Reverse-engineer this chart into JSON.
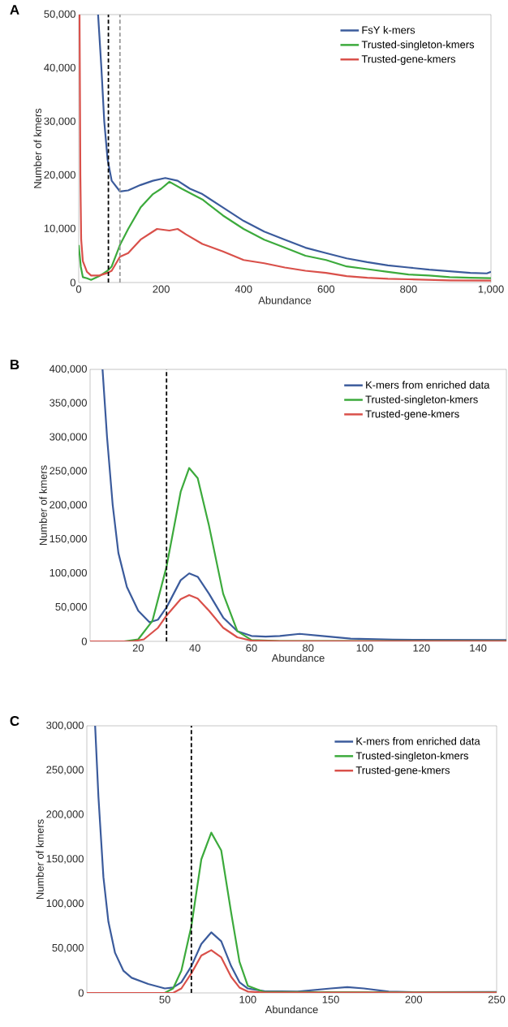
{
  "chart_data": [
    {
      "type": "line",
      "title": "A",
      "xlabel": "Abundance",
      "ylabel": "Number of kmers",
      "xlim": [
        0,
        1000
      ],
      "ylim": [
        0,
        50000
      ],
      "xticks": [
        0,
        200,
        400,
        600,
        800,
        {
          "value": 1000,
          "label": "1,000"
        }
      ],
      "yticks": [
        0,
        {
          "value": 10000,
          "label": "10,000"
        },
        {
          "value": 20000,
          "label": "20,000"
        },
        {
          "value": 30000,
          "label": "30,000"
        },
        {
          "value": 40000,
          "label": "40,000"
        },
        {
          "value": 50000,
          "label": "50,000"
        }
      ],
      "grid": false,
      "legend": "top right",
      "marker": "none",
      "line_style": "solid",
      "ref_lines": [
        {
          "axis": "x",
          "value": 72,
          "color": "#000000",
          "line_style": "dashed"
        },
        {
          "axis": "x",
          "value": 100,
          "color": "#999999",
          "line_style": "dashed"
        }
      ],
      "series": [
        {
          "name": "FsY k-mers",
          "color": "#3b5b9c",
          "x": [
            47,
            55,
            62,
            70,
            80,
            100,
            120,
            150,
            180,
            210,
            240,
            270,
            300,
            350,
            400,
            450,
            500,
            550,
            600,
            650,
            700,
            750,
            800,
            850,
            900,
            950,
            990,
            1000
          ],
          "values": [
            50000,
            40000,
            30000,
            23000,
            19000,
            17000,
            17200,
            18200,
            19000,
            19500,
            19000,
            17500,
            16500,
            14000,
            11500,
            9500,
            8000,
            6500,
            5500,
            4500,
            3800,
            3200,
            2800,
            2400,
            2100,
            1800,
            1700,
            2000
          ]
        },
        {
          "name": "Trusted-singleton-kmers",
          "color": "#3caa3c",
          "x": [
            0,
            5,
            10,
            20,
            30,
            50,
            70,
            80,
            100,
            120,
            150,
            180,
            200,
            220,
            250,
            300,
            350,
            400,
            450,
            500,
            550,
            600,
            650,
            700,
            750,
            800,
            850,
            900,
            950,
            1000
          ],
          "values": [
            7000,
            3000,
            1000,
            800,
            500,
            1200,
            2200,
            3000,
            7000,
            10000,
            14000,
            16500,
            17500,
            18800,
            17500,
            15500,
            12500,
            10000,
            8000,
            6500,
            5000,
            4200,
            3000,
            2500,
            2000,
            1500,
            1300,
            1000,
            900,
            800
          ]
        },
        {
          "name": "Trusted-gene-kmers",
          "color": "#d9504a",
          "x": [
            2,
            4,
            6,
            10,
            20,
            30,
            50,
            70,
            80,
            100,
            120,
            150,
            180,
            190,
            220,
            240,
            260,
            300,
            350,
            400,
            450,
            500,
            550,
            600,
            650,
            700,
            750,
            800,
            900,
            1000
          ],
          "values": [
            50000,
            20000,
            8000,
            4000,
            2000,
            1300,
            1300,
            1800,
            2200,
            4800,
            5500,
            8000,
            9500,
            10000,
            9700,
            10000,
            9000,
            7200,
            5800,
            4200,
            3600,
            2800,
            2200,
            1800,
            1200,
            900,
            700,
            600,
            400,
            350
          ]
        }
      ]
    },
    {
      "type": "line",
      "title": "B",
      "xlabel": "Abundance",
      "ylabel": "Number of kmers",
      "xlim": [
        3,
        150
      ],
      "ylim": [
        0,
        400000
      ],
      "xticks": [
        20,
        40,
        60,
        80,
        100,
        120,
        140
      ],
      "yticks": [
        0,
        {
          "value": 50000,
          "label": "50,000"
        },
        {
          "value": 100000,
          "label": "100,000"
        },
        {
          "value": 150000,
          "label": "150,000"
        },
        {
          "value": 200000,
          "label": "200,000"
        },
        {
          "value": 250000,
          "label": "250,000"
        },
        {
          "value": 300000,
          "label": "300,000"
        },
        {
          "value": 350000,
          "label": "350,000"
        },
        {
          "value": 400000,
          "label": "400,000"
        }
      ],
      "grid": false,
      "legend": "top right",
      "marker": "none",
      "line_style": "solid",
      "ref_lines": [
        {
          "axis": "x",
          "value": 30,
          "color": "#000000",
          "line_style": "dashed"
        }
      ],
      "series": [
        {
          "name": "K-mers from enriched data",
          "color": "#3b5b9c",
          "x": [
            7.4,
            9,
            11,
            13,
            16,
            20,
            24,
            27,
            30,
            35,
            38,
            41,
            45,
            50,
            55,
            60,
            65,
            70,
            77,
            85,
            95,
            110,
            150
          ],
          "values": [
            400000,
            300000,
            200000,
            130000,
            80000,
            45000,
            28000,
            32000,
            50000,
            90000,
            100000,
            95000,
            70000,
            35000,
            15000,
            8000,
            7000,
            8000,
            11000,
            8000,
            4000,
            2500,
            2000
          ]
        },
        {
          "name": "Trusted-singleton-kmers",
          "color": "#3caa3c",
          "x": [
            3,
            15,
            20,
            25,
            30,
            35,
            38,
            41,
            45,
            50,
            55,
            60,
            70,
            150
          ],
          "values": [
            0,
            0,
            3000,
            30000,
            110000,
            220000,
            255000,
            240000,
            170000,
            70000,
            15000,
            2000,
            500,
            500
          ]
        },
        {
          "name": "Trusted-gene-kmers",
          "color": "#d9504a",
          "x": [
            3,
            18,
            22,
            27,
            30,
            35,
            38,
            41,
            45,
            50,
            55,
            60,
            70,
            150
          ],
          "values": [
            0,
            0,
            3000,
            20000,
            38000,
            62000,
            68000,
            63000,
            45000,
            20000,
            6000,
            1000,
            300,
            300
          ]
        }
      ]
    },
    {
      "type": "line",
      "title": "C",
      "xlabel": "Abundance",
      "ylabel": "Number of kmers",
      "xlim": [
        3,
        250
      ],
      "ylim": [
        0,
        300000
      ],
      "xticks": [
        50,
        100,
        150,
        200,
        250
      ],
      "yticks": [
        0,
        {
          "value": 50000,
          "label": "50,000"
        },
        {
          "value": 100000,
          "label": "100,000"
        },
        {
          "value": 150000,
          "label": "150,000"
        },
        {
          "value": 200000,
          "label": "200,000"
        },
        {
          "value": 250000,
          "label": "250,000"
        },
        {
          "value": 300000,
          "label": "300,000"
        }
      ],
      "grid": false,
      "legend": "top right",
      "marker": "none",
      "line_style": "solid",
      "ref_lines": [
        {
          "axis": "x",
          "value": 66,
          "color": "#000000",
          "line_style": "dashed"
        }
      ],
      "series": [
        {
          "name": "K-mers from enriched data",
          "color": "#3b5b9c",
          "x": [
            8,
            10,
            13,
            16,
            20,
            25,
            30,
            40,
            50,
            55,
            60,
            66,
            72,
            78,
            84,
            90,
            95,
            100,
            110,
            130,
            150,
            160,
            170,
            185,
            200,
            250
          ],
          "values": [
            300000,
            220000,
            130000,
            80000,
            45000,
            25000,
            17000,
            10000,
            5000,
            6000,
            12000,
            30000,
            55000,
            68000,
            58000,
            30000,
            12000,
            5000,
            2000,
            1500,
            5000,
            6500,
            5000,
            1500,
            800,
            1000
          ]
        },
        {
          "name": "Trusted-singleton-kmers",
          "color": "#3caa3c",
          "x": [
            3,
            50,
            55,
            60,
            66,
            72,
            78,
            84,
            90,
            95,
            100,
            110,
            250
          ],
          "values": [
            0,
            0,
            5000,
            25000,
            75000,
            150000,
            180000,
            160000,
            90000,
            35000,
            8000,
            1000,
            500
          ]
        },
        {
          "name": "Trusted-gene-kmers",
          "color": "#d9504a",
          "x": [
            3,
            55,
            60,
            66,
            72,
            78,
            84,
            90,
            95,
            100,
            110,
            250
          ],
          "values": [
            0,
            0,
            5000,
            22000,
            42000,
            48000,
            40000,
            18000,
            6000,
            1500,
            300,
            300
          ]
        }
      ]
    }
  ]
}
